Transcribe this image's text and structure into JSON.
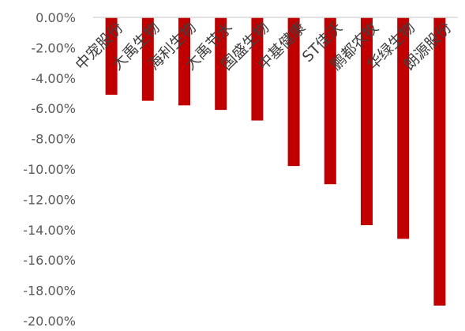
{
  "chart_data": {
    "type": "bar",
    "title": "",
    "xlabel": "",
    "ylabel": "",
    "categories": [
      "中宠股份",
      "大禹生物",
      "海利生物",
      "大禹节水",
      "国盛生物",
      "中基健康",
      "ST佳沃",
      "鹏都农牧",
      "华绿生物",
      "朗源股份"
    ],
    "values": [
      -5.1,
      -5.5,
      -5.8,
      -6.1,
      -6.8,
      -9.8,
      -11.0,
      -13.7,
      -14.6,
      -19.0
    ],
    "ylim": [
      -20,
      0
    ],
    "y_ticks": [
      0,
      -2,
      -4,
      -6,
      -8,
      -10,
      -12,
      -14,
      -16,
      -18,
      -20
    ],
    "y_tick_labels": [
      "0.00%",
      "-2.00%",
      "-4.00%",
      "-6.00%",
      "-8.00%",
      "-10.00%",
      "-12.00%",
      "-14.00%",
      "-16.00%",
      "-18.00%",
      "-20.00%"
    ],
    "grid": false,
    "legend": "none",
    "bar_color": "#C00000",
    "axis_color": "#D9D9D9"
  }
}
